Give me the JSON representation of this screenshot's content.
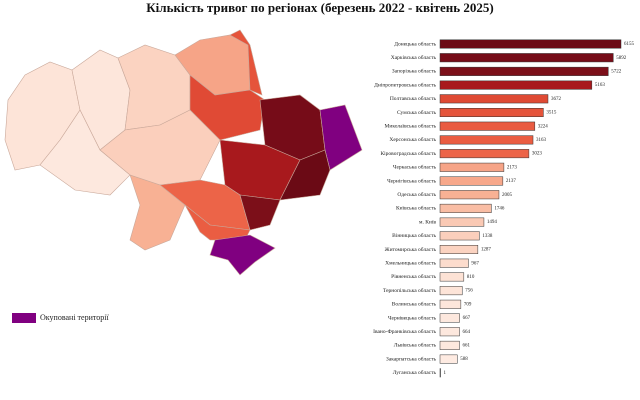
{
  "chart_data": {
    "type": "bar",
    "orientation": "horizontal",
    "title": "Кількість тривог по регіонах (березень 2022 - квітень 2025)",
    "categories": [
      "Донецька область",
      "Харківська область",
      "Запорізька область",
      "Дніпропетровська область",
      "Полтавська область",
      "Сумська область",
      "Миколаївська область",
      "Херсонська область",
      "Кіровоградська область",
      "Черкаська область",
      "Чернігівська область",
      "Одеська область",
      "Київська область",
      "м. Київ",
      "Вінницька область",
      "Житомирська область",
      "Хмельницька область",
      "Рівненська область",
      "Тернопільська область",
      "Волинська область",
      "Чернівецька область",
      "Івано-Франківська область",
      "Львівська область",
      "Закарпатська область",
      "Луганська область"
    ],
    "values": [
      6155,
      5892,
      5722,
      5163,
      3672,
      3515,
      3224,
      3163,
      3023,
      2173,
      2137,
      2005,
      1746,
      1494,
      1338,
      1287,
      967,
      810,
      756,
      709,
      667,
      664,
      661,
      588,
      1
    ],
    "colors": [
      "#6b0a15",
      "#760c18",
      "#7c0f19",
      "#a8191d",
      "#df4a34",
      "#e5543b",
      "#e95b41",
      "#ea5d42",
      "#ec6448",
      "#f6a487",
      "#f7a88b",
      "#f8b194",
      "#f9bda4",
      "#fac9b4",
      "#fbcfbc",
      "#fbd3c1",
      "#fcdccd",
      "#fde2d5",
      "#fde4d8",
      "#fde6db",
      "#fde8de",
      "#fde8de",
      "#fde8de",
      "#feebe2",
      "#fff5f0"
    ],
    "legend": {
      "label": "Окуповані території",
      "color": "#800080"
    }
  }
}
